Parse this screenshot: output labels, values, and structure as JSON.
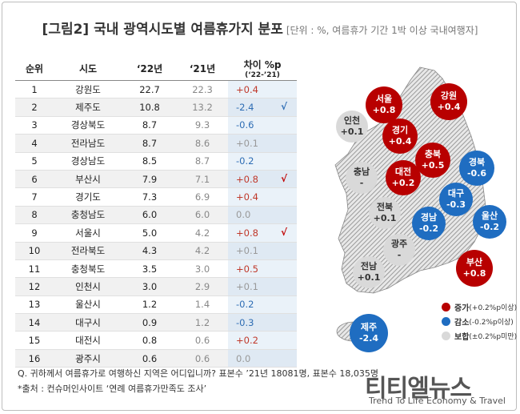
{
  "title": "[그림2] 국내 광역시도별 여름휴가지 분포",
  "unit_note": "[단위 : %, 여름휴가 기간 1박 이상 국내여행자]",
  "headers": {
    "rank": "순위",
    "region": "시도",
    "y22": "‘22년",
    "y21": "‘21년",
    "diff": "차이 %p",
    "diff_sub": "(‘22-’21)"
  },
  "chart_data": {
    "type": "table",
    "columns": [
      "순위",
      "시도",
      "‘22년",
      "‘21년",
      "차이 %p (‘22-’21)"
    ],
    "rows": [
      {
        "rank": "1",
        "region": "강원도",
        "y22": "22.7",
        "y21": "22.3",
        "diff": "+0.4",
        "mark": ""
      },
      {
        "rank": "2",
        "region": "제주도",
        "y22": "10.8",
        "y21": "13.2",
        "diff": "-2.4",
        "mark": "√"
      },
      {
        "rank": "3",
        "region": "경상북도",
        "y22": "8.7",
        "y21": "9.3",
        "diff": "-0.6",
        "mark": ""
      },
      {
        "rank": "4",
        "region": "전라남도",
        "y22": "8.7",
        "y21": "8.6",
        "diff": "+0.1",
        "mark": ""
      },
      {
        "rank": "5",
        "region": "경상남도",
        "y22": "8.5",
        "y21": "8.7",
        "diff": "-0.2",
        "mark": ""
      },
      {
        "rank": "6",
        "region": "부산시",
        "y22": "7.9",
        "y21": "7.1",
        "diff": "+0.8",
        "mark": "√"
      },
      {
        "rank": "7",
        "region": "경기도",
        "y22": "7.3",
        "y21": "6.9",
        "diff": "+0.4",
        "mark": ""
      },
      {
        "rank": "8",
        "region": "충청남도",
        "y22": "6.0",
        "y21": "6.0",
        "diff": "0.0",
        "mark": ""
      },
      {
        "rank": "9",
        "region": "서울시",
        "y22": "5.0",
        "y21": "4.2",
        "diff": "+0.8",
        "mark": "√"
      },
      {
        "rank": "10",
        "region": "전라북도",
        "y22": "4.3",
        "y21": "4.2",
        "diff": "+0.1",
        "mark": ""
      },
      {
        "rank": "11",
        "region": "충청북도",
        "y22": "3.5",
        "y21": "3.0",
        "diff": "+0.5",
        "mark": ""
      },
      {
        "rank": "12",
        "region": "인천시",
        "y22": "3.0",
        "y21": "2.9",
        "diff": "+0.1",
        "mark": ""
      },
      {
        "rank": "13",
        "region": "울산시",
        "y22": "1.2",
        "y21": "1.4",
        "diff": "-0.2",
        "mark": ""
      },
      {
        "rank": "14",
        "region": "대구시",
        "y22": "0.9",
        "y21": "1.2",
        "diff": "-0.3",
        "mark": ""
      },
      {
        "rank": "15",
        "region": "대전시",
        "y22": "0.8",
        "y21": "0.6",
        "diff": "+0.2",
        "mark": ""
      },
      {
        "rank": "16",
        "region": "광주시",
        "y22": "0.6",
        "y21": "0.6",
        "diff": "0.0",
        "mark": ""
      }
    ]
  },
  "map_regions": [
    {
      "id": "seoul",
      "name": "서울",
      "value": "+0.8",
      "cat": "inc"
    },
    {
      "id": "gangwon",
      "name": "강원",
      "value": "+0.4",
      "cat": "inc"
    },
    {
      "id": "incheon",
      "name": "인천",
      "value": "+0.1",
      "cat": "neu"
    },
    {
      "id": "gyeonggi",
      "name": "경기",
      "value": "+0.4",
      "cat": "inc"
    },
    {
      "id": "chungbuk",
      "name": "충북",
      "value": "+0.5",
      "cat": "inc"
    },
    {
      "id": "gyeongbuk",
      "name": "경북",
      "value": "-0.6",
      "cat": "dec"
    },
    {
      "id": "chungnam",
      "name": "충남",
      "value": "-",
      "cat": "neu"
    },
    {
      "id": "daejeon",
      "name": "대전",
      "value": "+0.2",
      "cat": "inc"
    },
    {
      "id": "daegu",
      "name": "대구",
      "value": "-0.3",
      "cat": "dec"
    },
    {
      "id": "jeonbuk",
      "name": "전북",
      "value": "+0.1",
      "cat": "neu"
    },
    {
      "id": "gyeongnam",
      "name": "경남",
      "value": "-0.2",
      "cat": "dec"
    },
    {
      "id": "ulsan",
      "name": "울산",
      "value": "-0.2",
      "cat": "dec"
    },
    {
      "id": "gwangju",
      "name": "광주",
      "value": "-",
      "cat": "neu"
    },
    {
      "id": "jeonnam",
      "name": "전남",
      "value": "+0.1",
      "cat": "neu"
    },
    {
      "id": "busan",
      "name": "부산",
      "value": "+0.8",
      "cat": "inc"
    },
    {
      "id": "jeju",
      "name": "제주",
      "value": "-2.4",
      "cat": "dec"
    }
  ],
  "legend": [
    {
      "label": "증가",
      "note": "(+0.2%p이상)",
      "color": "#b80000"
    },
    {
      "label": "감소",
      "note": "(-0.2%p이상)",
      "color": "#1f6dc1"
    },
    {
      "label": "보합",
      "note": "(±0.2%p미만)",
      "color": "#d9d9d9"
    }
  ],
  "footnote_q": "Q. 귀하께서 여름휴가로 여행하신 지역은 어디입니까? 표본수 ’21년 18081명, 표본수 18,035명",
  "footnote_src": "*출처 : 컨슈머인사이트 ‘연례 여름휴가만족도 조사’",
  "logo_main": "티티엘뉴스",
  "logo_sub": "Trend To Life Economy & Travel",
  "colors": {
    "increase": "#b80000",
    "decrease": "#1f6dc1",
    "neutral": "#d9d9d9",
    "table_diff_bg": "#eaf2f9"
  }
}
